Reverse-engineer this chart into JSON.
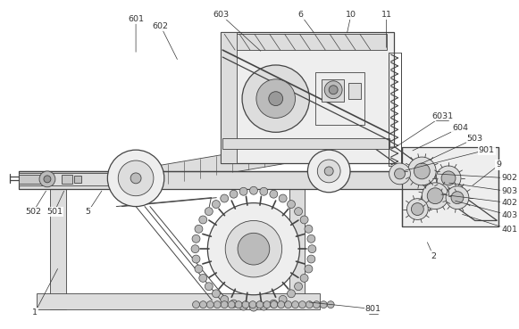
{
  "bg_color": "#ffffff",
  "line_color": "#666666",
  "dark_color": "#444444",
  "mid_gray": "#999999",
  "light_gray": "#cccccc",
  "fill_light": "#eeeeee",
  "fill_mid": "#dddddd",
  "fill_dark": "#bbbbbb"
}
